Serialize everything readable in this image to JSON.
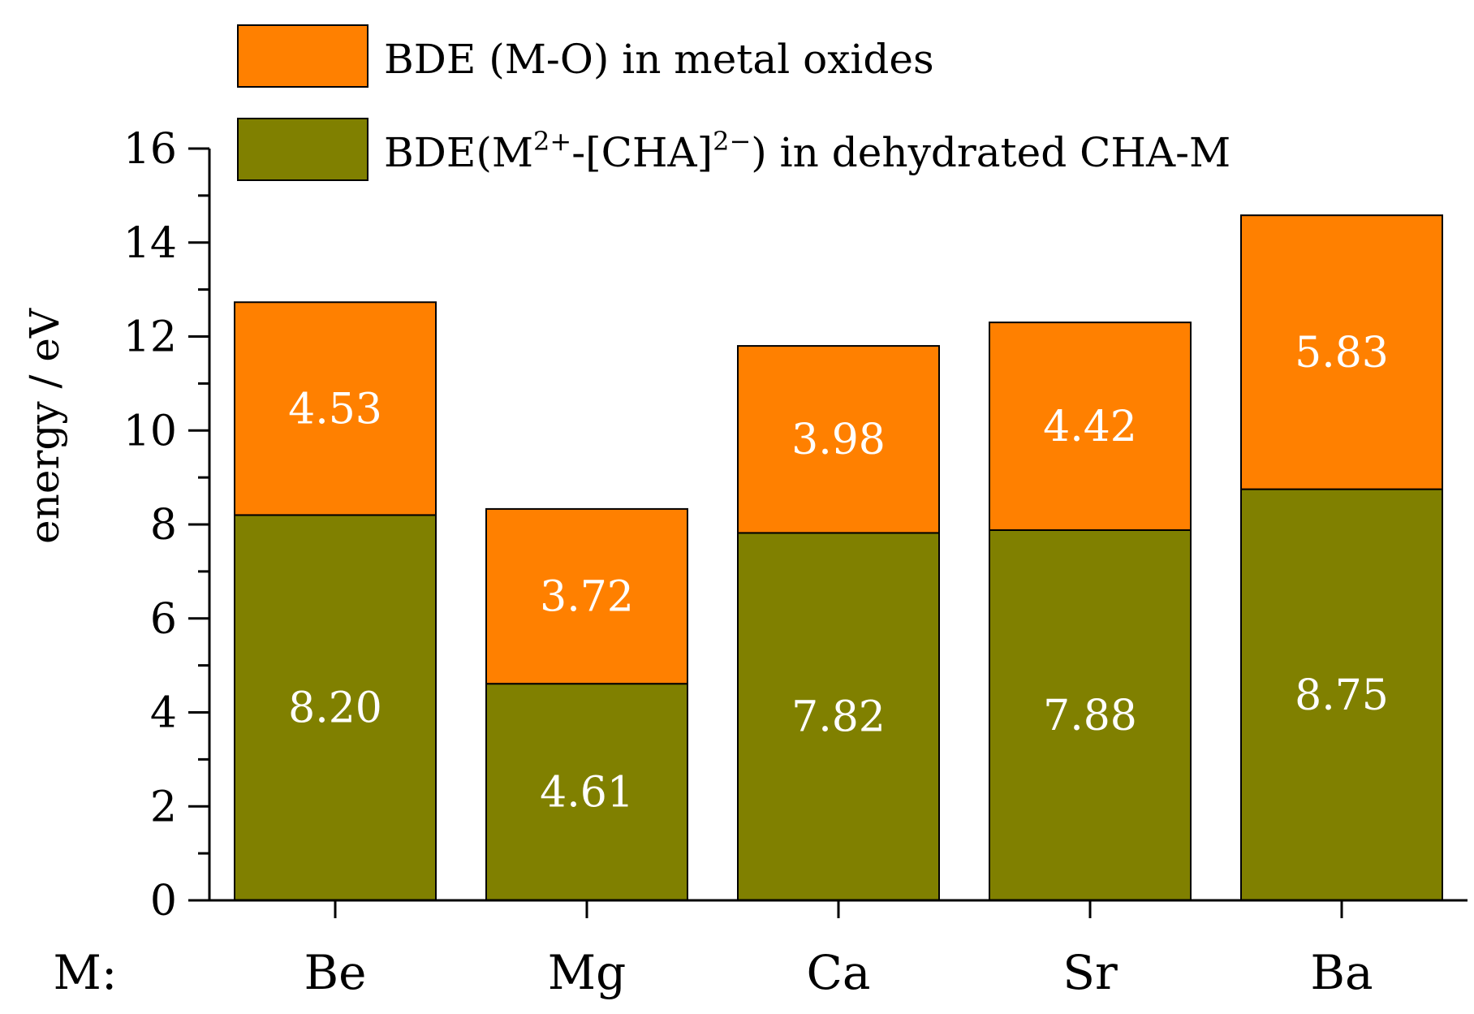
{
  "chart_data": {
    "type": "bar",
    "stacked": true,
    "x_prefix": "M:",
    "categories": [
      "Be",
      "Mg",
      "Ca",
      "Sr",
      "Ba"
    ],
    "ylabel": "energy / eV",
    "ylim": [
      0,
      16
    ],
    "yticks": [
      0,
      2,
      4,
      6,
      8,
      10,
      12,
      14,
      16
    ],
    "grid": false,
    "legend_position": "top",
    "series": [
      {
        "name": "BDE(M2+-[CHA]2−) in dehydrated CHA-M",
        "legend": {
          "pre": "BDE(M",
          "sup1": "2+",
          "mid": "-[CHA]",
          "sup2": "2−",
          "post": ") in dehydrated CHA-M"
        },
        "color": "#808000",
        "values": [
          8.2,
          4.61,
          7.82,
          7.88,
          8.75
        ],
        "labels": [
          "8.20",
          "4.61",
          "7.82",
          "7.88",
          "8.75"
        ]
      },
      {
        "name": "BDE (M-O) in metal oxides",
        "color": "#ff8000",
        "values": [
          4.53,
          3.72,
          3.98,
          4.42,
          5.83
        ],
        "labels": [
          "4.53",
          "3.72",
          "3.98",
          "4.42",
          "5.83"
        ]
      }
    ]
  }
}
